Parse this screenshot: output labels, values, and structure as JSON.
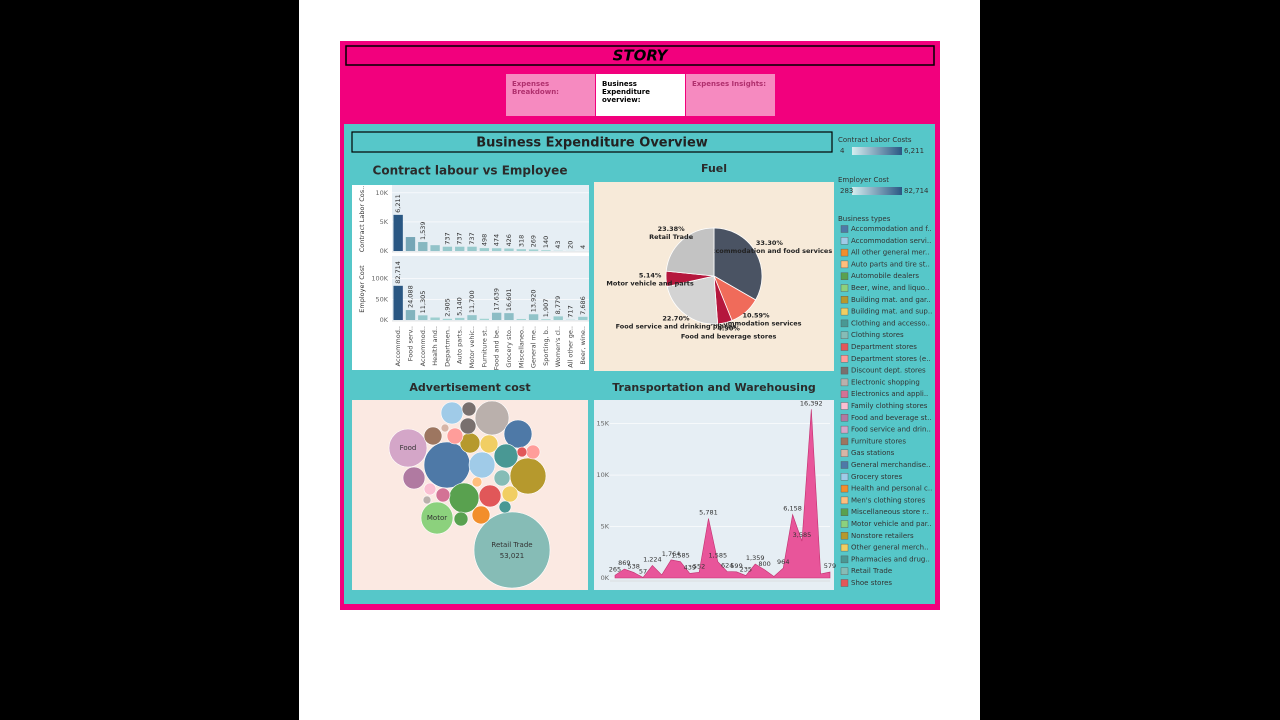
{
  "story": {
    "title": "STORY",
    "tabs": [
      "Expenses Breakdown:",
      "Business Expenditure overview:",
      "Expenses Insights:"
    ]
  },
  "dashboard_title": "Business Expenditure Overview",
  "legends": {
    "contract": {
      "title": "Contract Labor Costs",
      "min": 4,
      "max": {
        "value": 6211,
        "label": "6,211"
      },
      "colors": [
        "#d4eef0",
        "#2a5783"
      ]
    },
    "employer": {
      "title": "Employer Cost",
      "min": 283,
      "max": {
        "value": 82714,
        "label": "82,714"
      },
      "colors": [
        "#d4eef0",
        "#2a5783"
      ]
    },
    "business_types": {
      "title": "Business types",
      "names": [
        "Accommodation and f..",
        "Accommodation servi..",
        "All other general mer..",
        "Auto parts and tire st..",
        "Automobile dealers",
        "Beer, wine, and liquo..",
        "Building mat. and gar..",
        "Building mat. and sup..",
        "Clothing and accesso..",
        "Clothing stores",
        "Department stores",
        "Department stores (e..",
        "Discount dept. stores",
        "Electronic shopping",
        "Electronics and appli..",
        "Family clothing stores",
        "Food and beverage st..",
        "Food service and drin..",
        "Furniture stores",
        "Gas stations",
        "General merchandise..",
        "Grocery stores",
        "Health and personal c..",
        "Men's clothing stores",
        "Miscellaneous store r..",
        "Motor vehicle and par..",
        "Nonstore retailers",
        "Other general merch..",
        "Pharmacies and drug..",
        "Retail Trade",
        "Shoe stores"
      ],
      "colors": [
        "#4e79a7",
        "#a0cbe8",
        "#f28e2b",
        "#ffbe7d",
        "#59a14f",
        "#8cd17d",
        "#b6992d",
        "#f1ce63",
        "#499894",
        "#86bcb6",
        "#e15759",
        "#ff9d9a",
        "#79706e",
        "#bab0ac",
        "#d37295",
        "#fabfd2",
        "#b07aa1",
        "#d4a6c8",
        "#9d7660",
        "#d7b5a6",
        "#4e79a7",
        "#a0cbe8",
        "#f28e2b",
        "#ffbe7d",
        "#59a14f",
        "#8cd17d",
        "#b6992d",
        "#f1ce63",
        "#499894",
        "#86bcb6",
        "#e15759"
      ]
    }
  },
  "chart_data": [
    {
      "type": "bar",
      "title": "Contract labour vs Employee",
      "categories": [
        "Accommod..",
        "Food serv..",
        "Accommod..",
        "Health and..",
        "Departmen..",
        "Auto parts..",
        "Motor vehic..",
        "Furniture st..",
        "Food and be..",
        "Grocery sto..",
        "Miscellaneo..",
        "General me..",
        "Sporting, b..",
        "Women's cl..",
        "All other ge..",
        "Beer, wine.."
      ],
      "series": [
        {
          "name": "Contract Labor Cos..",
          "legend": "contract",
          "values": [
            6211,
            2400,
            1539,
            1000,
            737,
            737,
            737,
            498,
            474,
            426,
            318,
            269,
            140,
            43,
            20,
            4
          ],
          "value_labels": [
            "6,211",
            null,
            "1,539",
            null,
            "737",
            "737",
            "737",
            "498",
            "474",
            "426",
            "318",
            "269",
            "140",
            "43",
            "20",
            "4"
          ],
          "ylim": [
            0,
            11000
          ],
          "yticks": [
            {
              "value": 0,
              "label": "0K"
            },
            {
              "value": 5000,
              "label": "5K"
            },
            {
              "value": 10000,
              "label": "10K"
            }
          ]
        },
        {
          "name": "Employer Cost",
          "legend": "employer",
          "values": [
            82714,
            24088,
            11305,
            6000,
            2905,
            5140,
            11700,
            3000,
            17639,
            16601,
            2500,
            13920,
            1907,
            8779,
            717,
            7686
          ],
          "value_labels": [
            "82,714",
            "24,088",
            "11,305",
            null,
            "2,905",
            "5,140",
            "11,700",
            null,
            "17,639",
            "16,601",
            null,
            "13,920",
            "1,907",
            "8,779",
            "717",
            "7,686"
          ],
          "ylim": [
            0,
            150000
          ],
          "yticks": [
            {
              "value": 0,
              "label": "0K"
            },
            {
              "value": 50000,
              "label": "50K"
            },
            {
              "value": 100000,
              "label": "100K"
            }
          ]
        }
      ]
    },
    {
      "type": "pie",
      "title": "Fuel",
      "categories": [
        "Accommodation and food services",
        "Accommodation services",
        "Food and beverage stores",
        "Food service and drinking places",
        "Motor vehicle and parts",
        "Retail Trade"
      ],
      "values": [
        33.3,
        10.59,
        4.9,
        22.7,
        5.14,
        23.38
      ],
      "value_labels": [
        "33.30%",
        "10.59%",
        "4.90%",
        "22.70%",
        "5.14%",
        "23.38%"
      ],
      "colors": [
        "#4a5363",
        "#f06b5a",
        "#b5173d",
        "#d3d3d3",
        "#b5173d",
        "#c3c3c3"
      ]
    },
    {
      "type": "bubble",
      "title": "Advertisement cost",
      "values": [
        53021,
        13260,
        19430,
        11900,
        9400,
        10600,
        7200,
        6200,
        8260,
        4440,
        5290,
        4440,
        4440,
        2975,
        3670,
        2975,
        2350,
        1800,
        1800,
        2350,
        2975,
        2350,
        2350,
        1800,
        1800,
        1320,
        920,
        1320,
        590,
        590,
        920
      ],
      "labels": [
        "Retail Trade",
        "Food",
        null,
        null,
        "Motor",
        null,
        null,
        null,
        null,
        null,
        null,
        null,
        null,
        null,
        null,
        null,
        null,
        null,
        null,
        null,
        null,
        null,
        null,
        null,
        null,
        null,
        null,
        null,
        null,
        null,
        null
      ],
      "value_labels": [
        "53,021",
        null,
        null,
        null,
        null,
        null,
        null,
        null,
        null,
        null,
        null,
        null,
        null,
        null,
        null,
        null,
        null,
        null,
        null,
        null,
        null,
        null,
        null,
        null,
        null,
        null,
        null,
        null,
        null,
        null,
        null
      ],
      "colors": [
        "#86bcb6",
        "#d4a6c8",
        "#4e79a7",
        "#b6992d",
        "#8cd17d",
        "#bab0ac",
        "#4e79a7",
        "#a0cbe8",
        "#59a14f",
        "#e15759",
        "#499894",
        "#a0cbe8",
        "#b07aa1",
        "#9d7660",
        "#b6992d",
        "#f1ce63",
        "#79706e",
        "#79706e",
        "#d37295",
        "#ff9d9a",
        "#f28e2b",
        "#f1ce63",
        "#86bcb6",
        "#ff9d9a",
        "#59a14f",
        "#499894",
        "#e15759",
        "#fabfd2",
        "#bab0ac",
        "#d7b5a6",
        "#ffbe7d"
      ]
    },
    {
      "type": "area",
      "title": "Transportation and Warehousing",
      "color": "#e8559a",
      "categories": [
        null,
        null,
        null,
        null,
        null,
        null,
        null,
        null,
        null,
        null,
        null,
        null,
        null,
        null,
        null,
        null,
        null,
        null,
        null,
        null,
        null,
        null,
        null,
        null
      ],
      "values": [
        265,
        869,
        538,
        57,
        1224,
        300,
        1764,
        1585,
        439,
        552,
        5781,
        1585,
        624,
        599,
        235,
        1359,
        800,
        150,
        964,
        6158,
        3585,
        16392,
        400,
        579
      ],
      "value_labels": [
        "265",
        "869",
        "538",
        "57",
        "1,224",
        null,
        "1,764",
        "1,585",
        "439",
        "552",
        "5,781",
        "1,585",
        "624",
        "599",
        "235",
        "1,359",
        "800",
        null,
        "964",
        "6,158",
        "3,585",
        "16,392",
        null,
        "579"
      ],
      "ylim": [
        0,
        17000
      ],
      "yticks": [
        {
          "value": 0,
          "label": "0K"
        },
        {
          "value": 5000,
          "label": "5K"
        },
        {
          "value": 10000,
          "label": "10K"
        },
        {
          "value": 15000,
          "label": "15K"
        }
      ]
    }
  ]
}
